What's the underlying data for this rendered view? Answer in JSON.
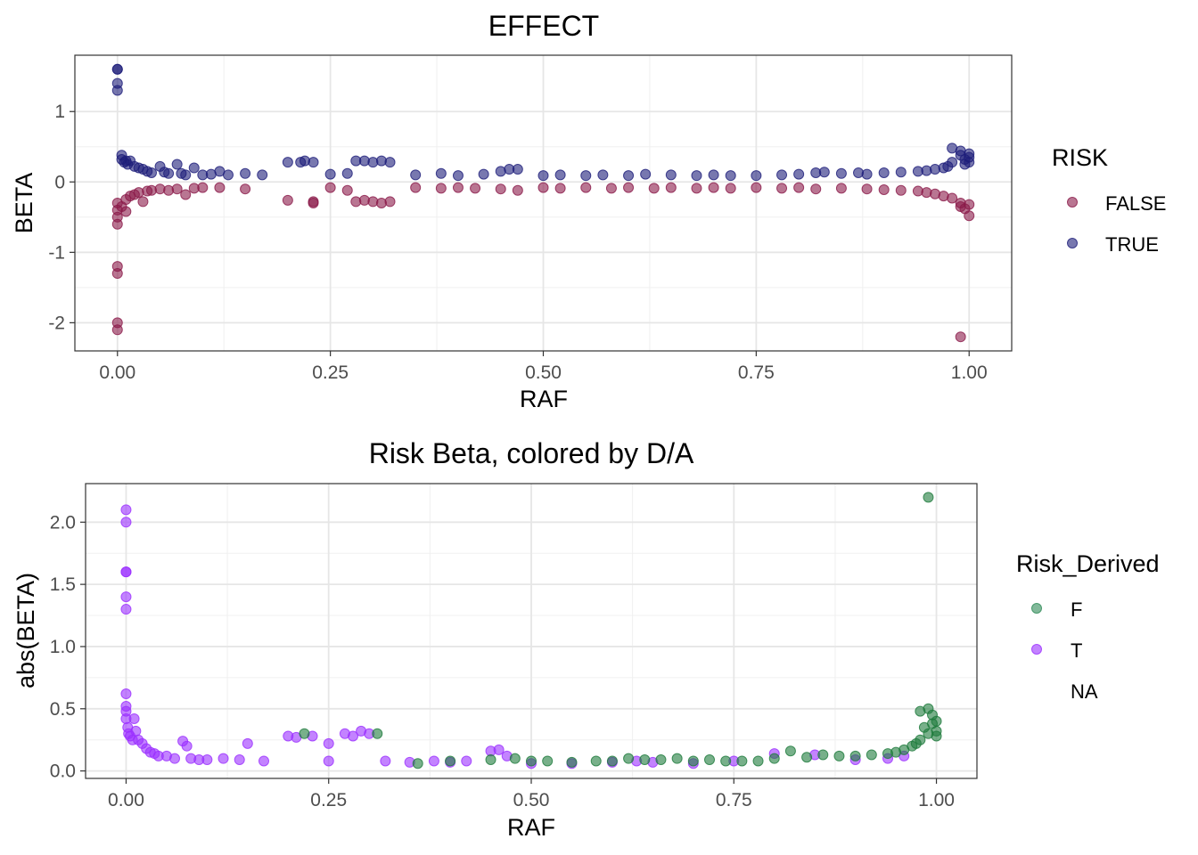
{
  "chart_data": [
    {
      "type": "scatter",
      "title": "EFFECT",
      "xlabel": "RAF",
      "ylabel": "BETA",
      "xlim": [
        -0.05,
        1.05
      ],
      "ylim": [
        -2.4,
        1.8
      ],
      "xticks": [
        0,
        0.25,
        0.5,
        0.75,
        1
      ],
      "xtick_labels": [
        "0.00",
        "0.25",
        "0.50",
        "0.75",
        "1.00"
      ],
      "yticks": [
        -2,
        -1,
        0,
        1
      ],
      "ytick_labels": [
        "-2",
        "-1",
        "0",
        "1"
      ],
      "grid": true,
      "legend": {
        "title": "RISK",
        "placement": "right",
        "entries": [
          {
            "label": "FALSE",
            "color": "#8B1A4A"
          },
          {
            "label": "TRUE",
            "color": "#1E1E7A"
          }
        ]
      },
      "series": [
        {
          "name": "TRUE",
          "color": "#1E1E7A",
          "points": [
            [
              0.0,
              1.6
            ],
            [
              0.0,
              1.6
            ],
            [
              0.0,
              1.4
            ],
            [
              0.0,
              1.3
            ],
            [
              0.005,
              0.38
            ],
            [
              0.005,
              0.32
            ],
            [
              0.008,
              0.28
            ],
            [
              0.01,
              0.3
            ],
            [
              0.012,
              0.25
            ],
            [
              0.015,
              0.3
            ],
            [
              0.02,
              0.22
            ],
            [
              0.025,
              0.2
            ],
            [
              0.03,
              0.18
            ],
            [
              0.035,
              0.15
            ],
            [
              0.04,
              0.13
            ],
            [
              0.05,
              0.22
            ],
            [
              0.055,
              0.14
            ],
            [
              0.06,
              0.12
            ],
            [
              0.07,
              0.25
            ],
            [
              0.075,
              0.12
            ],
            [
              0.08,
              0.1
            ],
            [
              0.09,
              0.2
            ],
            [
              0.1,
              0.1
            ],
            [
              0.11,
              0.11
            ],
            [
              0.12,
              0.15
            ],
            [
              0.13,
              0.1
            ],
            [
              0.15,
              0.12
            ],
            [
              0.17,
              0.1
            ],
            [
              0.2,
              0.28
            ],
            [
              0.215,
              0.28
            ],
            [
              0.22,
              0.3
            ],
            [
              0.23,
              0.28
            ],
            [
              0.25,
              0.11
            ],
            [
              0.27,
              0.12
            ],
            [
              0.28,
              0.3
            ],
            [
              0.29,
              0.3
            ],
            [
              0.3,
              0.28
            ],
            [
              0.31,
              0.3
            ],
            [
              0.32,
              0.28
            ],
            [
              0.35,
              0.1
            ],
            [
              0.38,
              0.12
            ],
            [
              0.4,
              0.09
            ],
            [
              0.43,
              0.11
            ],
            [
              0.45,
              0.15
            ],
            [
              0.46,
              0.18
            ],
            [
              0.47,
              0.18
            ],
            [
              0.5,
              0.09
            ],
            [
              0.52,
              0.1
            ],
            [
              0.55,
              0.09
            ],
            [
              0.57,
              0.1
            ],
            [
              0.6,
              0.09
            ],
            [
              0.62,
              0.11
            ],
            [
              0.65,
              0.1
            ],
            [
              0.68,
              0.09
            ],
            [
              0.7,
              0.1
            ],
            [
              0.72,
              0.09
            ],
            [
              0.75,
              0.09
            ],
            [
              0.78,
              0.1
            ],
            [
              0.8,
              0.11
            ],
            [
              0.82,
              0.13
            ],
            [
              0.83,
              0.14
            ],
            [
              0.85,
              0.12
            ],
            [
              0.87,
              0.13
            ],
            [
              0.88,
              0.11
            ],
            [
              0.9,
              0.13
            ],
            [
              0.92,
              0.14
            ],
            [
              0.94,
              0.15
            ],
            [
              0.95,
              0.16
            ],
            [
              0.96,
              0.18
            ],
            [
              0.97,
              0.2
            ],
            [
              0.975,
              0.22
            ],
            [
              0.98,
              0.28
            ],
            [
              0.98,
              0.48
            ],
            [
              0.99,
              0.44
            ],
            [
              0.99,
              0.38
            ],
            [
              0.995,
              0.32
            ],
            [
              0.995,
              0.25
            ],
            [
              1.0,
              0.28
            ],
            [
              1.0,
              0.4
            ],
            [
              1.0,
              0.35
            ]
          ]
        },
        {
          "name": "FALSE",
          "color": "#8B1A4A",
          "points": [
            [
              0.0,
              -0.3
            ],
            [
              0.0,
              -0.4
            ],
            [
              0.0,
              -0.5
            ],
            [
              0.0,
              -0.6
            ],
            [
              0.0,
              -1.2
            ],
            [
              0.0,
              -1.3
            ],
            [
              0.0,
              -2.0
            ],
            [
              0.0,
              -2.1
            ],
            [
              0.005,
              -0.35
            ],
            [
              0.01,
              -0.25
            ],
            [
              0.01,
              -0.42
            ],
            [
              0.015,
              -0.2
            ],
            [
              0.02,
              -0.18
            ],
            [
              0.025,
              -0.15
            ],
            [
              0.03,
              -0.28
            ],
            [
              0.035,
              -0.13
            ],
            [
              0.04,
              -0.12
            ],
            [
              0.05,
              -0.1
            ],
            [
              0.06,
              -0.12
            ],
            [
              0.07,
              -0.1
            ],
            [
              0.08,
              -0.18
            ],
            [
              0.09,
              -0.09
            ],
            [
              0.1,
              -0.08
            ],
            [
              0.12,
              -0.08
            ],
            [
              0.15,
              -0.1
            ],
            [
              0.2,
              -0.26
            ],
            [
              0.23,
              -0.28
            ],
            [
              0.23,
              -0.3
            ],
            [
              0.25,
              -0.08
            ],
            [
              0.27,
              -0.12
            ],
            [
              0.28,
              -0.28
            ],
            [
              0.29,
              -0.26
            ],
            [
              0.3,
              -0.28
            ],
            [
              0.31,
              -0.3
            ],
            [
              0.32,
              -0.28
            ],
            [
              0.35,
              -0.08
            ],
            [
              0.38,
              -0.09
            ],
            [
              0.4,
              -0.08
            ],
            [
              0.42,
              -0.09
            ],
            [
              0.45,
              -0.1
            ],
            [
              0.47,
              -0.12
            ],
            [
              0.5,
              -0.08
            ],
            [
              0.52,
              -0.09
            ],
            [
              0.55,
              -0.08
            ],
            [
              0.58,
              -0.09
            ],
            [
              0.6,
              -0.08
            ],
            [
              0.63,
              -0.09
            ],
            [
              0.65,
              -0.08
            ],
            [
              0.68,
              -0.09
            ],
            [
              0.7,
              -0.08
            ],
            [
              0.72,
              -0.09
            ],
            [
              0.75,
              -0.08
            ],
            [
              0.78,
              -0.09
            ],
            [
              0.8,
              -0.08
            ],
            [
              0.82,
              -0.1
            ],
            [
              0.85,
              -0.09
            ],
            [
              0.88,
              -0.1
            ],
            [
              0.9,
              -0.11
            ],
            [
              0.92,
              -0.12
            ],
            [
              0.94,
              -0.13
            ],
            [
              0.95,
              -0.15
            ],
            [
              0.96,
              -0.17
            ],
            [
              0.97,
              -0.2
            ],
            [
              0.98,
              -0.23
            ],
            [
              0.99,
              -0.3
            ],
            [
              0.99,
              -0.35
            ],
            [
              0.995,
              -0.38
            ],
            [
              1.0,
              -0.32
            ],
            [
              1.0,
              -0.48
            ],
            [
              0.99,
              -2.2
            ]
          ]
        }
      ]
    },
    {
      "type": "scatter",
      "title": "Risk Beta, colored by D/A",
      "xlabel": "RAF",
      "ylabel": "abs(BETA)",
      "xlim": [
        -0.05,
        1.05
      ],
      "ylim": [
        -0.06,
        2.31
      ],
      "xticks": [
        0,
        0.25,
        0.5,
        0.75,
        1
      ],
      "xtick_labels": [
        "0.00",
        "0.25",
        "0.50",
        "0.75",
        "1.00"
      ],
      "yticks": [
        0,
        0.5,
        1,
        1.5,
        2
      ],
      "ytick_labels": [
        "0.0",
        "0.5",
        "1.0",
        "1.5",
        "2.0"
      ],
      "grid": true,
      "legend": {
        "title": "Risk_Derived",
        "placement": "right",
        "entries": [
          {
            "label": "F",
            "color": "#2E8B57"
          },
          {
            "label": "T",
            "color": "#9B30FF"
          },
          {
            "label": "NA",
            "color": ""
          }
        ]
      },
      "series": [
        {
          "name": "T",
          "color": "#9B30FF",
          "points": [
            [
              0.0,
              2.1
            ],
            [
              0.0,
              2.0
            ],
            [
              0.0,
              1.6
            ],
            [
              0.0,
              1.6
            ],
            [
              0.0,
              1.4
            ],
            [
              0.0,
              1.3
            ],
            [
              0.0,
              0.62
            ],
            [
              0.0,
              0.52
            ],
            [
              0.0,
              0.48
            ],
            [
              0.0,
              0.42
            ],
            [
              0.002,
              0.35
            ],
            [
              0.003,
              0.3
            ],
            [
              0.005,
              0.28
            ],
            [
              0.008,
              0.25
            ],
            [
              0.01,
              0.42
            ],
            [
              0.012,
              0.32
            ],
            [
              0.015,
              0.25
            ],
            [
              0.02,
              0.22
            ],
            [
              0.025,
              0.18
            ],
            [
              0.03,
              0.15
            ],
            [
              0.035,
              0.14
            ],
            [
              0.04,
              0.12
            ],
            [
              0.05,
              0.12
            ],
            [
              0.06,
              0.1
            ],
            [
              0.07,
              0.24
            ],
            [
              0.075,
              0.2
            ],
            [
              0.08,
              0.1
            ],
            [
              0.09,
              0.09
            ],
            [
              0.1,
              0.09
            ],
            [
              0.12,
              0.1
            ],
            [
              0.14,
              0.09
            ],
            [
              0.15,
              0.22
            ],
            [
              0.17,
              0.08
            ],
            [
              0.2,
              0.28
            ],
            [
              0.21,
              0.27
            ],
            [
              0.23,
              0.28
            ],
            [
              0.25,
              0.08
            ],
            [
              0.25,
              0.22
            ],
            [
              0.27,
              0.3
            ],
            [
              0.28,
              0.28
            ],
            [
              0.29,
              0.32
            ],
            [
              0.3,
              0.3
            ],
            [
              0.32,
              0.08
            ],
            [
              0.35,
              0.07
            ],
            [
              0.38,
              0.08
            ],
            [
              0.4,
              0.07
            ],
            [
              0.42,
              0.08
            ],
            [
              0.45,
              0.16
            ],
            [
              0.46,
              0.17
            ],
            [
              0.47,
              0.12
            ],
            [
              0.5,
              0.06
            ],
            [
              0.55,
              0.06
            ],
            [
              0.6,
              0.07
            ],
            [
              0.63,
              0.08
            ],
            [
              0.65,
              0.07
            ],
            [
              0.7,
              0.06
            ],
            [
              0.75,
              0.08
            ],
            [
              0.8,
              0.14
            ],
            [
              0.85,
              0.13
            ],
            [
              0.9,
              0.09
            ],
            [
              0.94,
              0.1
            ],
            [
              0.96,
              0.12
            ]
          ]
        },
        {
          "name": "F",
          "color": "#1E7B3C",
          "points": [
            [
              0.22,
              0.3
            ],
            [
              0.31,
              0.3
            ],
            [
              0.36,
              0.06
            ],
            [
              0.4,
              0.08
            ],
            [
              0.45,
              0.09
            ],
            [
              0.48,
              0.1
            ],
            [
              0.5,
              0.08
            ],
            [
              0.52,
              0.08
            ],
            [
              0.55,
              0.07
            ],
            [
              0.58,
              0.08
            ],
            [
              0.6,
              0.08
            ],
            [
              0.62,
              0.1
            ],
            [
              0.64,
              0.09
            ],
            [
              0.66,
              0.09
            ],
            [
              0.68,
              0.1
            ],
            [
              0.7,
              0.08
            ],
            [
              0.72,
              0.09
            ],
            [
              0.74,
              0.08
            ],
            [
              0.76,
              0.08
            ],
            [
              0.78,
              0.08
            ],
            [
              0.8,
              0.1
            ],
            [
              0.82,
              0.16
            ],
            [
              0.84,
              0.11
            ],
            [
              0.86,
              0.13
            ],
            [
              0.88,
              0.12
            ],
            [
              0.9,
              0.12
            ],
            [
              0.92,
              0.13
            ],
            [
              0.94,
              0.14
            ],
            [
              0.95,
              0.15
            ],
            [
              0.96,
              0.17
            ],
            [
              0.97,
              0.2
            ],
            [
              0.975,
              0.22
            ],
            [
              0.98,
              0.48
            ],
            [
              0.98,
              0.25
            ],
            [
              0.985,
              0.35
            ],
            [
              0.99,
              0.5
            ],
            [
              0.99,
              0.3
            ],
            [
              0.995,
              0.45
            ],
            [
              0.995,
              0.38
            ],
            [
              1.0,
              0.4
            ],
            [
              1.0,
              0.32
            ],
            [
              1.0,
              0.28
            ],
            [
              0.99,
              2.2
            ]
          ]
        }
      ]
    }
  ]
}
